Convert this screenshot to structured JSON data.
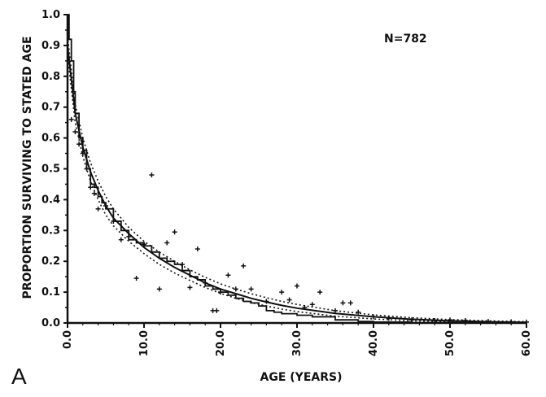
{
  "chart_data": {
    "type": "line",
    "title": "",
    "panel_label": "A",
    "annotation": "N=782",
    "xlabel": "AGE (YEARS)",
    "ylabel": "PROPORTION SURVIVING TO STATED AGE",
    "xlim": [
      0,
      60
    ],
    "ylim": [
      0,
      1.0
    ],
    "x_ticks": [
      "0.0",
      "10.0",
      "20.0",
      "30.0",
      "40.0",
      "50.0",
      "60.0"
    ],
    "y_ticks": [
      "0.0",
      "0.1",
      "0.2",
      "0.3",
      "0.4",
      "0.5",
      "0.6",
      "0.7",
      "0.8",
      "0.9",
      "1.0"
    ],
    "grid": false,
    "legend": "none",
    "series": [
      {
        "style": "solid-step",
        "points": [
          [
            0,
            1.0
          ],
          [
            0.2,
            0.92
          ],
          [
            0.5,
            0.85
          ],
          [
            0.8,
            0.75
          ],
          [
            1,
            0.68
          ],
          [
            1.5,
            0.6
          ],
          [
            2,
            0.56
          ],
          [
            2.5,
            0.5
          ],
          [
            3,
            0.45
          ],
          [
            3.5,
            0.44
          ],
          [
            4,
            0.41
          ],
          [
            4.5,
            0.39
          ],
          [
            5,
            0.37
          ],
          [
            6,
            0.33
          ],
          [
            7,
            0.3
          ],
          [
            8,
            0.27
          ],
          [
            9,
            0.26
          ],
          [
            10,
            0.25
          ],
          [
            11,
            0.23
          ],
          [
            12,
            0.21
          ],
          [
            13,
            0.2
          ],
          [
            14,
            0.19
          ],
          [
            15,
            0.17
          ],
          [
            16,
            0.15
          ],
          [
            17,
            0.14
          ],
          [
            18,
            0.12
          ],
          [
            19,
            0.11
          ],
          [
            20,
            0.1
          ],
          [
            21,
            0.09
          ],
          [
            22,
            0.08
          ],
          [
            23,
            0.07
          ],
          [
            24,
            0.065
          ],
          [
            25,
            0.055
          ],
          [
            26,
            0.04
          ],
          [
            27,
            0.035
          ],
          [
            28,
            0.03
          ],
          [
            30,
            0.025
          ],
          [
            32,
            0.02
          ],
          [
            35,
            0.01
          ],
          [
            38,
            0.005
          ],
          [
            40,
            0.003
          ],
          [
            45,
            0.001
          ],
          [
            60,
            0.0
          ]
        ]
      },
      {
        "style": "solid-smooth",
        "points": [
          [
            0,
            0.9
          ],
          [
            0.5,
            0.79
          ],
          [
            1,
            0.68
          ],
          [
            2,
            0.57
          ],
          [
            3,
            0.49
          ],
          [
            4,
            0.43
          ],
          [
            5,
            0.38
          ],
          [
            6,
            0.34
          ],
          [
            8,
            0.29
          ],
          [
            10,
            0.245
          ],
          [
            12,
            0.21
          ],
          [
            14,
            0.18
          ],
          [
            16,
            0.155
          ],
          [
            18,
            0.13
          ],
          [
            20,
            0.11
          ],
          [
            22,
            0.095
          ],
          [
            24,
            0.08
          ],
          [
            26,
            0.068
          ],
          [
            28,
            0.057
          ],
          [
            30,
            0.048
          ],
          [
            35,
            0.031
          ],
          [
            40,
            0.02
          ],
          [
            45,
            0.012
          ],
          [
            50,
            0.007
          ],
          [
            55,
            0.004
          ],
          [
            60,
            0.002
          ]
        ]
      },
      {
        "style": "dotted-upper",
        "points": [
          [
            0,
            0.93
          ],
          [
            0.5,
            0.82
          ],
          [
            1,
            0.71
          ],
          [
            2,
            0.6
          ],
          [
            3,
            0.52
          ],
          [
            4,
            0.46
          ],
          [
            5,
            0.41
          ],
          [
            6,
            0.37
          ],
          [
            8,
            0.31
          ],
          [
            10,
            0.265
          ],
          [
            12,
            0.23
          ],
          [
            14,
            0.2
          ],
          [
            16,
            0.172
          ],
          [
            18,
            0.148
          ],
          [
            20,
            0.127
          ],
          [
            22,
            0.11
          ],
          [
            24,
            0.095
          ],
          [
            26,
            0.082
          ],
          [
            28,
            0.07
          ],
          [
            30,
            0.06
          ],
          [
            35,
            0.04
          ],
          [
            40,
            0.026
          ],
          [
            45,
            0.017
          ],
          [
            50,
            0.011
          ],
          [
            55,
            0.007
          ],
          [
            60,
            0.004
          ]
        ]
      },
      {
        "style": "dotted-lower",
        "points": [
          [
            0,
            0.87
          ],
          [
            0.5,
            0.76
          ],
          [
            1,
            0.65
          ],
          [
            2,
            0.54
          ],
          [
            3,
            0.46
          ],
          [
            4,
            0.4
          ],
          [
            5,
            0.35
          ],
          [
            6,
            0.315
          ],
          [
            8,
            0.265
          ],
          [
            10,
            0.225
          ],
          [
            12,
            0.19
          ],
          [
            14,
            0.162
          ],
          [
            16,
            0.138
          ],
          [
            18,
            0.115
          ],
          [
            20,
            0.096
          ],
          [
            22,
            0.08
          ],
          [
            24,
            0.066
          ],
          [
            26,
            0.055
          ],
          [
            28,
            0.045
          ],
          [
            30,
            0.037
          ],
          [
            35,
            0.022
          ],
          [
            40,
            0.013
          ],
          [
            45,
            0.007
          ],
          [
            50,
            0.004
          ],
          [
            55,
            0.002
          ],
          [
            60,
            0.001
          ]
        ]
      }
    ],
    "observed_points": [
      [
        0.5,
        0.66
      ],
      [
        1,
        0.62
      ],
      [
        1.5,
        0.58
      ],
      [
        2,
        0.55
      ],
      [
        2.5,
        0.5
      ],
      [
        3,
        0.44
      ],
      [
        3.5,
        0.42
      ],
      [
        4,
        0.37
      ],
      [
        5,
        0.38
      ],
      [
        6,
        0.33
      ],
      [
        7,
        0.27
      ],
      [
        8,
        0.28
      ],
      [
        9,
        0.145
      ],
      [
        10,
        0.255
      ],
      [
        11,
        0.48
      ],
      [
        12,
        0.11
      ],
      [
        13,
        0.26
      ],
      [
        14,
        0.295
      ],
      [
        15,
        0.19
      ],
      [
        16,
        0.115
      ],
      [
        17,
        0.24
      ],
      [
        18,
        0.13
      ],
      [
        19,
        0.04
      ],
      [
        19.5,
        0.04
      ],
      [
        20,
        0.1
      ],
      [
        21,
        0.155
      ],
      [
        22,
        0.11
      ],
      [
        23,
        0.185
      ],
      [
        24,
        0.11
      ],
      [
        26,
        0.07
      ],
      [
        28,
        0.1
      ],
      [
        29,
        0.075
      ],
      [
        30,
        0.12
      ],
      [
        31,
        0.05
      ],
      [
        32,
        0.06
      ],
      [
        33,
        0.1
      ],
      [
        35,
        0.04
      ],
      [
        36,
        0.065
      ],
      [
        37,
        0.065
      ],
      [
        38,
        0.035
      ],
      [
        40,
        0.02
      ],
      [
        42,
        0.015
      ],
      [
        45,
        0.01
      ],
      [
        48,
        0.008
      ],
      [
        50,
        0.01
      ],
      [
        52,
        0.008
      ],
      [
        55,
        0.005
      ],
      [
        58,
        0.004
      ],
      [
        60,
        0.003
      ]
    ]
  }
}
